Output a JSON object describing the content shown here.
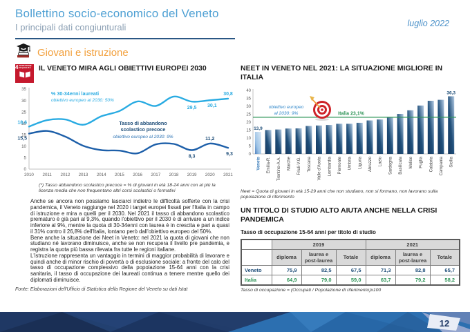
{
  "header": {
    "title": "Bollettino socio-economico del Veneto",
    "subtitle": "I principali dati congiunturali",
    "date": "luglio 2022"
  },
  "section": {
    "title": "Giovani e istruzione"
  },
  "icons": {
    "section_icon": "graduation-cap-books-icon",
    "sdg_badge": "sdg4-quality-education-badge",
    "target_icon": "dartboard-target-icon"
  },
  "left": {
    "sdg": {
      "number": "4",
      "label": "ISTRUZIONE DI QUALITÀ"
    },
    "chart_title": "IL VENETO MIRA AGLI OBIETTIVI EUROPEI 2030",
    "footnote": "(*) Tasso abbandono scolastico precoce = % di giovani in età 18-24 anni con al più la licenza media che non frequentano altri corsi scolastici o formativi",
    "paragraphs": [
      "Anche se ancora non possiamo lasciarci indietro le difficoltà sofferte con la crisi pandemica, il Veneto raggiunge nel 2020 i target europei fissati per l'Italia in campo di istruzione e mira a quelli per il 2030. Nel 2021 il tasso di abbandono scolastico prematuro è già pari al 9,3%, quando l'obiettivo per il 2030 è di arrivare a un indice inferiore al 9%, mentre la quota di 30-34enni con laurea è in crescita e pari a quasi il 31% contro il 26,8% dell'Italia, lontano però dall'obiettivo europeo del 50%.",
      "Bene anche la situazione dei Neet in Veneto: nel 2021 la quota di giovani che non studiano né lavorano diminuisce, anche se non recupera il livello pre pandemia, e registra la quota più bassa rilevata fra tutte le regioni italiane.",
      "L'istruzione rappresenta un vantaggio in termini di maggior probabilità di lavorare e quindi anche di minor rischio di povertà o di esclusione sociale: a fronte del calo del tasso di occupazione complessivo della popolazione 15-64 anni con la crisi sanitaria, il tasso di occupazione dei laureati continua a tenere mentre quello dei diplomati diminuisce."
    ],
    "fonte": "Fonte: Elaborazioni dell'Ufficio di Statistica della Regione del Veneto su dati Istat"
  },
  "right": {
    "neet_title": "NEET IN VENETO NEL 2021: LA SITUAZIONE MIGLIORE IN ITALIA",
    "neet_note": "Neet = Quota di giovani in età 15-29 anni che non studiano, non si formano, non lavorano sulla popolazione di riferimento",
    "table_title": "UN TITOLO DI STUDIO ALTO AIUTA ANCHE NELLA CRISI PANDEMICA",
    "table_subtitle": "Tasso di occupazione 15-64 anni per titolo di studio",
    "table": {
      "year_headers": [
        "2019",
        "2021"
      ],
      "col_headers": [
        "diploma",
        "laurea e post-laurea",
        "Totale",
        "diploma",
        "laurea e post-laurea",
        "Totale"
      ],
      "rows": [
        {
          "label": "Veneto",
          "color": "#1F4E79",
          "values": [
            "75,9",
            "82,5",
            "67,5",
            "71,3",
            "82,8",
            "65,7"
          ]
        },
        {
          "label": "Italia",
          "color": "#2E9457",
          "values": [
            "64,9",
            "79,0",
            "59,0",
            "63,7",
            "79,2",
            "58,2"
          ]
        }
      ]
    },
    "table_note": "Tasso di occupazione = (Occupati / Popolazione di riferimento)x100"
  },
  "page_number": "12",
  "colors": {
    "title_blue": "#4C9FD3",
    "subtitle_gray": "#8CA0B4",
    "divider_navy": "#2A5784",
    "section_orange": "#F2A03D",
    "sdg_red": "#C5192D",
    "series_light_blue": "#29ABE2",
    "series_dark_blue": "#1D5FA9",
    "label_navy": "#1F4E79",
    "italia_green": "#2E9457",
    "bar_dark": "#16365C",
    "bar_light": "#B4CCE4",
    "footer_navy": "#1F3864",
    "footer_blue": "#2C6FB0"
  },
  "chart_data": [
    {
      "type": "line",
      "title": "IL VENETO MIRA AGLI OBIETTIVI EUROPEI 2030",
      "x": [
        2010,
        2011,
        2012,
        2013,
        2014,
        2015,
        2016,
        2017,
        2018,
        2019,
        2020,
        2021
      ],
      "ylim": [
        0,
        35
      ],
      "ytick_step": 5,
      "grid": false,
      "series": [
        {
          "name": "% 30-34enni laureati",
          "subtitle": "obiettivo europeo al 2030: 50%",
          "color": "#29ABE2",
          "values": [
            18.6,
            21.4,
            21.7,
            19.4,
            23.1,
            25.4,
            29.6,
            27.6,
            31.7,
            29.5,
            30.1,
            30.8
          ],
          "point_labels": {
            "2010": "18,6",
            "2019": "29,5",
            "2020": "30,1",
            "2021": "30,8"
          }
        },
        {
          "name": "Tasso di abbandono scolastico precoce",
          "subtitle": "obiettivo europeo al 2030: 9%",
          "color": "#1D5FA9",
          "values": [
            15.5,
            16.7,
            14.2,
            10.2,
            8.3,
            8.1,
            6.9,
            10.8,
            11.0,
            8.3,
            11.2,
            9.3
          ],
          "point_labels": {
            "2010": "15,5",
            "2019": "8,3",
            "2020": "11,2",
            "2021": "9,3"
          }
        }
      ]
    },
    {
      "type": "bar",
      "title": "NEET IN VENETO NEL 2021: LA SITUAZIONE MIGLIORE IN ITALIA",
      "categories": [
        "Veneto",
        "Emilia-R.",
        "Trentino-A.A.",
        "Marche",
        "Friuli-V.G.",
        "Toscana",
        "Valle d'Aosta",
        "Lombardia",
        "Piemonte",
        "Umbria",
        "Liguria",
        "Abruzzo",
        "Lazio",
        "Sardegna",
        "Basilicata",
        "Molise",
        "Puglia",
        "Calabria",
        "Campania",
        "Sicilia"
      ],
      "values": [
        13.9,
        15.1,
        15.4,
        16.0,
        16.1,
        17.6,
        17.9,
        18.2,
        19.0,
        19.0,
        19.6,
        21.1,
        21.7,
        23.2,
        25.2,
        27.5,
        30.5,
        33.5,
        34.1,
        36.3
      ],
      "ylim": [
        0,
        40
      ],
      "ytick_step": 5,
      "grid": false,
      "highlight_category": "Veneto",
      "bar_labels": {
        "Veneto": "13,9",
        "Sicilia": "36,3"
      },
      "reference_line": {
        "value": 23.1,
        "label": "Italia 23,1%",
        "color": "#2E9457"
      },
      "annotation_lines": [
        "obiettivo europeo",
        "al 2030: 9%"
      ]
    }
  ]
}
